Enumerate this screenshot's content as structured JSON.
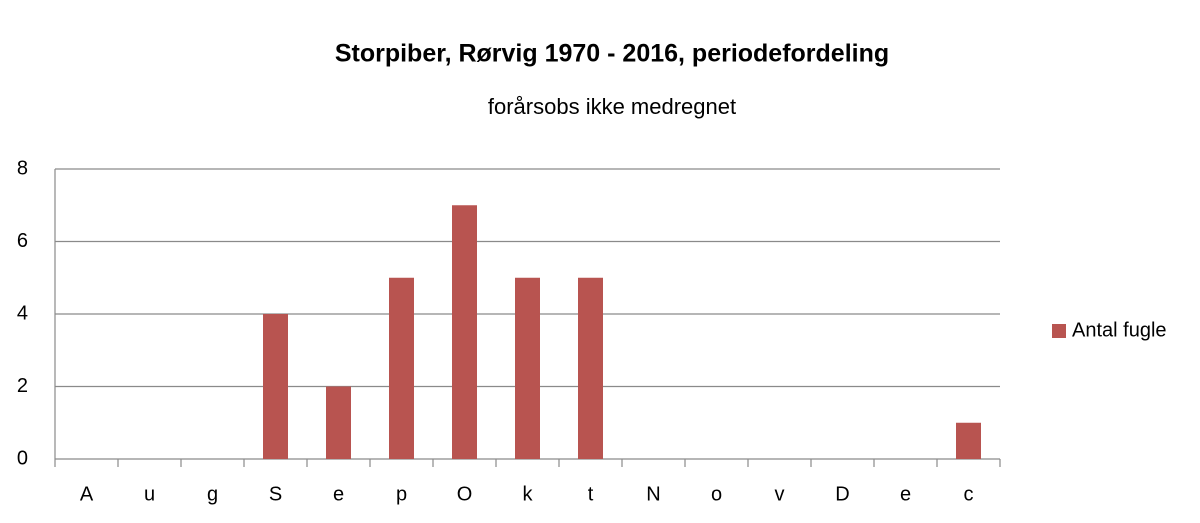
{
  "chart_data": {
    "type": "bar",
    "title": "Storpiber, Rørvig 1970 - 2016, periodefordeling",
    "subtitle": "forårsobs ikke medregnet",
    "categories": [
      "A",
      "u",
      "g",
      "S",
      "e",
      "p",
      "O",
      "k",
      "t",
      "N",
      "o",
      "v",
      "D",
      "e",
      "c"
    ],
    "series": [
      {
        "name": "Antal fugle",
        "color": "#b85450",
        "values": [
          0,
          0,
          0,
          4,
          2,
          5,
          7,
          5,
          5,
          0,
          0,
          0,
          0,
          0,
          1
        ]
      }
    ],
    "ylim": [
      0,
      8
    ],
    "yticks": [
      0,
      2,
      4,
      6,
      8
    ],
    "grid": true,
    "legend": "right"
  }
}
